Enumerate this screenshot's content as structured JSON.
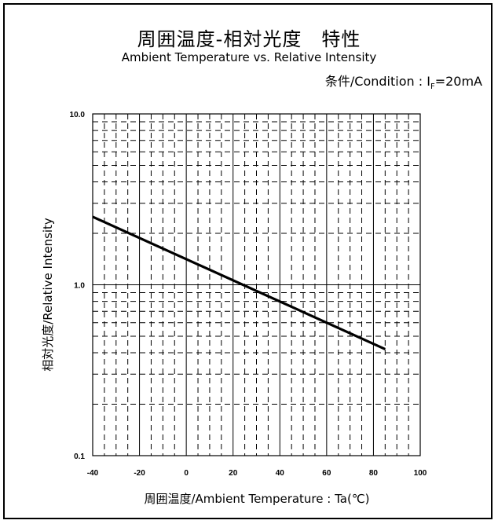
{
  "title": "周囲温度-相対光度　特性",
  "subtitle": "Ambient Temperature vs. Relative Intensity",
  "condition": {
    "prefix": "条件/Condition : I",
    "subscript": "F",
    "suffix": "=20mA"
  },
  "chart_data": {
    "type": "line",
    "title": "周囲温度-相対光度　特性",
    "subtitle": "Ambient Temperature vs. Relative Intensity",
    "xlabel": "周囲温度/Ambient Temperature : Ta(℃)",
    "ylabel": "相対光度/Relative Intensity",
    "xlim": [
      -40,
      100
    ],
    "ylim": [
      0.1,
      10.0
    ],
    "yscale": "log",
    "x_ticks": [
      "-40",
      "-20",
      "0",
      "20",
      "40",
      "60",
      "80",
      "100"
    ],
    "y_ticks": [
      "0.1",
      "1.0",
      "10.0"
    ],
    "grid": true,
    "series": [
      {
        "x": [
          -40,
          85
        ],
        "y": [
          2.5,
          0.42
        ]
      }
    ],
    "colors": {
      "line": "#000000",
      "grid": "#000000"
    }
  }
}
